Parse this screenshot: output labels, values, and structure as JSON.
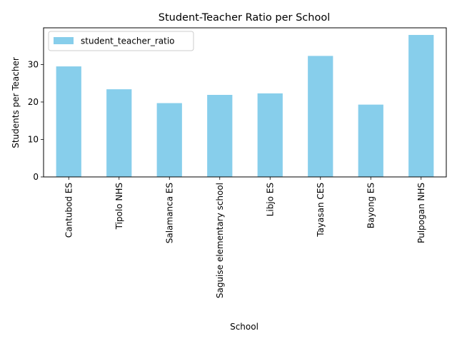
{
  "chart_data": {
    "type": "bar",
    "title": "Student-Teacher Ratio per School",
    "xlabel": "School",
    "ylabel": "Students per Teacher",
    "categories": [
      "Cantubod ES",
      "Tipolo NHS",
      "Salamanca ES",
      "Saguise elementary school",
      "Libjo ES",
      "Tayasan CES",
      "Bayong ES",
      "Pulpogan NHS"
    ],
    "series": [
      {
        "name": "student_teacher_ratio",
        "values": [
          29.5,
          23.4,
          19.7,
          21.9,
          22.3,
          32.3,
          19.3,
          37.9
        ],
        "color": "#87ceeb"
      }
    ],
    "yticks": [
      0,
      10,
      20,
      30
    ],
    "ylim": [
      0,
      39.8
    ],
    "grid": false,
    "legend": "top-left"
  }
}
